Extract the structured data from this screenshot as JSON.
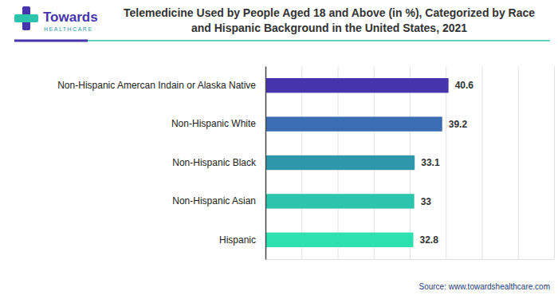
{
  "chart_data": {
    "type": "bar",
    "orientation": "horizontal",
    "title": "Telemedicine Used by People Aged 18 and Above (in %), Categorized by Race and Hispanic Background in the United States, 2021",
    "categories": [
      "Non-Hispanic Amercan Indain or Alaska Native",
      "Non-Hispanic White",
      "Non-Hispanic Black",
      "Non-Hispanic Asian",
      "Hispanic"
    ],
    "values": [
      40.6,
      39.2,
      33.1,
      33,
      32.8
    ],
    "colors": [
      "#4634ad",
      "#3b6db4",
      "#2e98aa",
      "#2cc4ad",
      "#2ce0b0"
    ],
    "xlim": [
      0,
      64
    ],
    "xticks": [
      0,
      8,
      16,
      24,
      32,
      40,
      48,
      56,
      64
    ],
    "grid": true,
    "data_labels": true,
    "tick_labels": "y",
    "annotations": [
      "Towards",
      "HEALTHCARE",
      "Source: www.towardshealthcare.com"
    ]
  }
}
